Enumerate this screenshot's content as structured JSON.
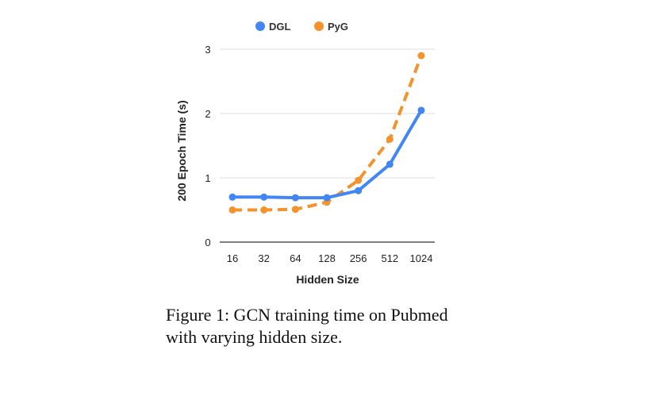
{
  "chart_data": {
    "type": "line",
    "xlabel": "Hidden Size",
    "ylabel": "200 Epoch Time (s)",
    "categories": [
      "16",
      "32",
      "64",
      "128",
      "256",
      "512",
      "1024"
    ],
    "ylim": [
      0,
      3
    ],
    "yticks": [
      0,
      1,
      2,
      3
    ],
    "grid": true,
    "legend_position": "top-center",
    "series": [
      {
        "name": "DGL",
        "color": "#4285F4",
        "line_style": "solid",
        "values": [
          0.7,
          0.7,
          0.69,
          0.69,
          0.8,
          1.21,
          2.05
        ]
      },
      {
        "name": "PyG",
        "color": "#F4922C",
        "line_style": "dashed",
        "values": [
          0.5,
          0.5,
          0.51,
          0.62,
          0.96,
          1.6,
          2.9
        ]
      }
    ]
  },
  "caption": {
    "text": "Figure 1:  GCN training time on Pubmed with varying hidden size."
  }
}
